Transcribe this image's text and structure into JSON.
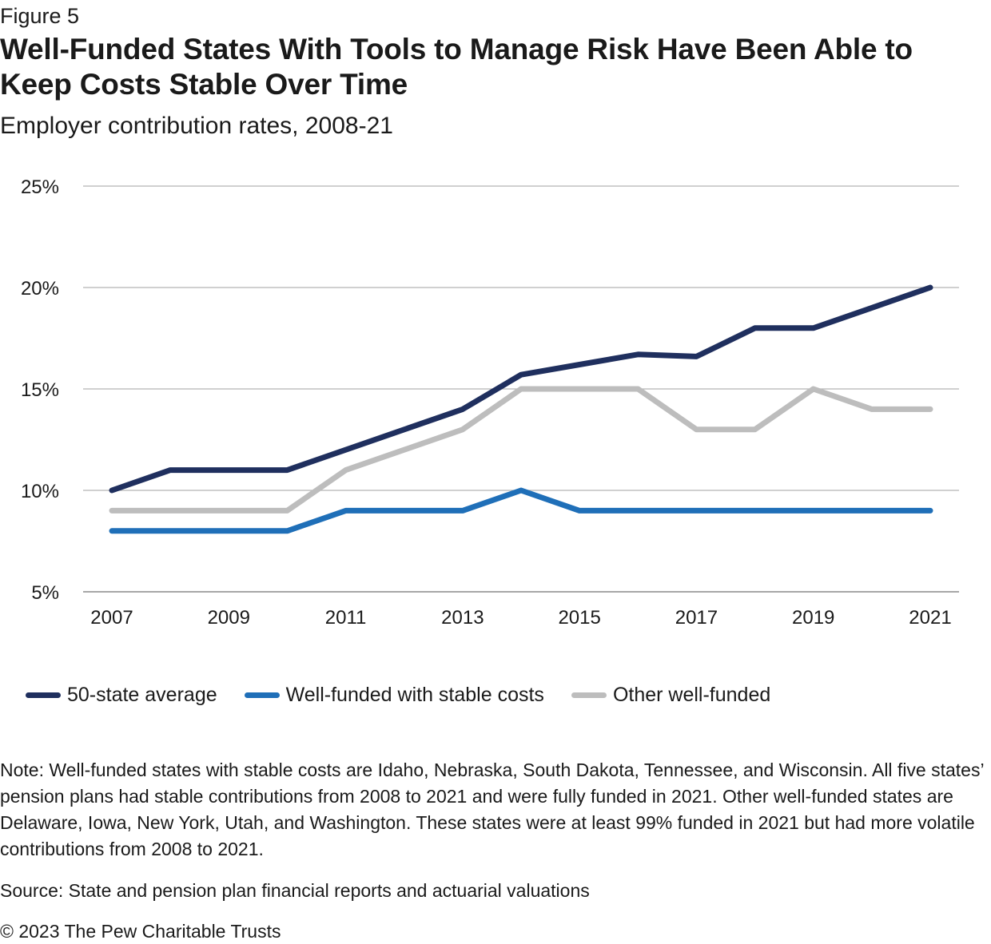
{
  "figure_label": "Figure 5",
  "title": "Well-Funded States With Tools to Manage Risk Have Been Able to Keep Costs Stable Over Time",
  "subtitle": "Employer contribution rates, 2008-21",
  "note": "Note: Well-funded states with stable costs are Idaho, Nebraska, South Dakota, Tennessee, and Wisconsin. All five states’ pension plans had stable contributions from 2008 to 2021 and were fully funded in 2021. Other well-funded states are Delaware, Iowa, New York, Utah, and Washington. These states were at least 99% funded in 2021 but had more volatile contributions from 2008 to 2021.",
  "source": "Source: State and pension plan financial reports and actuarial valuations",
  "copyright": "© 2023 The Pew Charitable Trusts",
  "chart_data": {
    "type": "line",
    "title": "",
    "xlabel": "",
    "ylabel": "",
    "x": [
      2007,
      2008,
      2009,
      2010,
      2011,
      2012,
      2013,
      2014,
      2015,
      2016,
      2017,
      2018,
      2019,
      2020,
      2021
    ],
    "x_ticks": [
      "2007",
      "2009",
      "2011",
      "2013",
      "2015",
      "2017",
      "2019",
      "2021"
    ],
    "x_tick_values": [
      2007,
      2009,
      2011,
      2013,
      2015,
      2017,
      2019,
      2021
    ],
    "y_ticks": [
      "5%",
      "10%",
      "15%",
      "20%",
      "25%"
    ],
    "y_tick_values": [
      5,
      10,
      15,
      20,
      25
    ],
    "ylim": [
      5,
      25
    ],
    "xlim": [
      2007,
      2021
    ],
    "grid": "horizontal",
    "legend_position": "bottom",
    "series": [
      {
        "name": "50-state average",
        "color": "#1f2f5e",
        "values": [
          10,
          11,
          11,
          11,
          12,
          13,
          14,
          15.7,
          16.2,
          16.7,
          16.6,
          18,
          18,
          19,
          20
        ]
      },
      {
        "name": "Well-funded with stable costs",
        "color": "#1f6fb8",
        "values": [
          8,
          8,
          8,
          8,
          9,
          9,
          9,
          10,
          9,
          9,
          9,
          9,
          9,
          9,
          9
        ]
      },
      {
        "name": "Other well-funded",
        "color": "#bdbdbd",
        "values": [
          9,
          9,
          9,
          9,
          11,
          12,
          13,
          15,
          15,
          15,
          13,
          13,
          15,
          14,
          14
        ]
      }
    ]
  }
}
